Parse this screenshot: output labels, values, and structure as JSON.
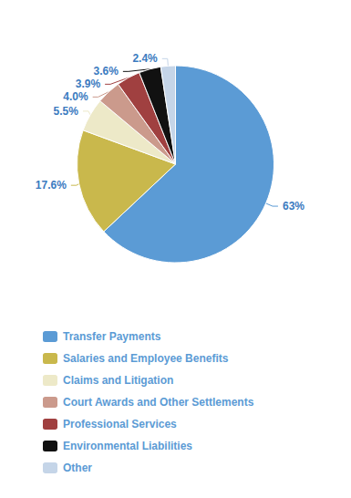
{
  "chart_data": {
    "type": "pie",
    "categories": [
      "Transfer Payments",
      "Salaries and Employee Benefits",
      "Claims and Litigation",
      "Court Awards and Other Settlements",
      "Professional Services",
      "Environmental Liabilities",
      "Other"
    ],
    "values": [
      63,
      17.6,
      5.5,
      4.0,
      3.9,
      3.6,
      2.4
    ],
    "value_labels": [
      "63%",
      "17.6%",
      "5.5%",
      "4.0%",
      "3.9%",
      "3.6%",
      "2.4%"
    ],
    "colors": [
      "#5B9BD5",
      "#C9B84C",
      "#EDE9C8",
      "#CB9A8C",
      "#A04040",
      "#111111",
      "#C5D5E8"
    ],
    "data_labels": true,
    "legend": "bottom"
  }
}
